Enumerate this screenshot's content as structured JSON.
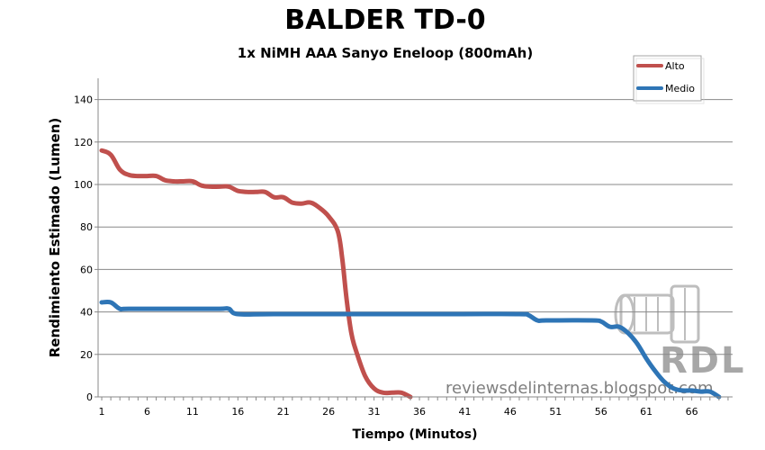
{
  "chart_data": {
    "type": "line",
    "title": "BALDER TD-0",
    "subtitle": "1x NiMH  AAA Sanyo Eneloop  (800mAh)",
    "xlabel": "Tiempo (Minutos)",
    "ylabel": "Rendimiento Estimado (Lumen)",
    "xlim": [
      1,
      70
    ],
    "ylim": [
      0,
      150
    ],
    "xticks": [
      1,
      6,
      11,
      16,
      21,
      26,
      31,
      36,
      41,
      46,
      51,
      56,
      61,
      66
    ],
    "yticks": [
      0,
      20,
      40,
      60,
      80,
      100,
      120,
      140
    ],
    "grid": true,
    "legend_position": "top-right",
    "series": [
      {
        "name": "Alto",
        "color": "#c0504d",
        "x": [
          1,
          2,
          3,
          4,
          5,
          6,
          7,
          8,
          9,
          10,
          11,
          12,
          13,
          14,
          15,
          16,
          17,
          18,
          19,
          20,
          21,
          22,
          23,
          24,
          25,
          26,
          27,
          27.5,
          28,
          28.5,
          29,
          30,
          31,
          32,
          33,
          34,
          35
        ],
        "y": [
          116,
          114,
          107,
          104.5,
          104,
          104,
          104,
          102,
          101.5,
          101.5,
          101.5,
          99.5,
          99,
          99,
          99,
          97,
          96.5,
          96.5,
          96.5,
          94,
          94,
          91.5,
          91,
          91.5,
          89,
          85,
          78,
          65,
          45,
          30,
          22,
          10,
          4,
          2,
          2,
          2,
          0
        ]
      },
      {
        "name": "Medio",
        "color": "#2e75b6",
        "x": [
          1,
          2,
          3,
          4,
          10,
          14,
          15,
          16,
          20,
          30,
          40,
          47,
          48,
          49,
          50,
          55,
          56,
          57,
          58,
          59,
          60,
          61,
          62,
          63,
          64,
          65,
          66,
          67,
          68,
          69
        ],
        "y": [
          44.5,
          44.5,
          41.5,
          41.5,
          41.5,
          41.5,
          41.5,
          39,
          39,
          39,
          39,
          39,
          38.5,
          36,
          36,
          36,
          35.5,
          33,
          33,
          30,
          25,
          18,
          12,
          7,
          4,
          3,
          3,
          2.5,
          2.5,
          0
        ]
      }
    ]
  },
  "watermark": {
    "logo_text": "RDL",
    "site": "reviewsdelinternas.blogspot.com"
  }
}
